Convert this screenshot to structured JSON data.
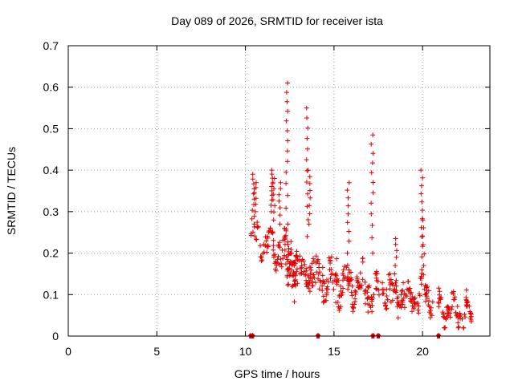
{
  "chart_data": {
    "type": "scatter",
    "title": "Day 089 of 2026, SRMTID for receiver ista",
    "xlabel": "GPS time / hours",
    "ylabel": "SRMTID / TECUs",
    "xlim": [
      0,
      23.8
    ],
    "ylim": [
      0,
      0.7
    ],
    "xticks": [
      0,
      5,
      10,
      15,
      20
    ],
    "yticks": [
      0,
      0.1,
      0.2,
      0.3,
      0.4,
      0.5,
      0.6,
      0.7
    ],
    "xtick_labels": [
      "0",
      "5",
      "10",
      "15",
      "20"
    ],
    "ytick_labels": [
      "0",
      "0.1",
      "0.2",
      "0.3",
      "0.4",
      "0.5",
      "0.6",
      "0.7"
    ],
    "grid": true,
    "marker": "plus",
    "series_color": "#e00000",
    "segments": [
      {
        "x0": 10.3,
        "x1": 12.9,
        "center": 0.235,
        "spread": 0.03,
        "trend": -0.04,
        "density": 40
      },
      {
        "x0": 12.2,
        "x1": 13.8,
        "center": 0.165,
        "spread": 0.035,
        "trend": -0.02,
        "density": 45
      },
      {
        "x0": 13.6,
        "x1": 16.2,
        "center": 0.145,
        "spread": 0.045,
        "trend": -0.03,
        "density": 40
      },
      {
        "x0": 15.9,
        "x1": 17.4,
        "center": 0.13,
        "spread": 0.035,
        "trend": -0.02,
        "density": 40
      },
      {
        "x0": 17.4,
        "x1": 20.6,
        "center": 0.11,
        "spread": 0.03,
        "trend": -0.02,
        "density": 40
      },
      {
        "x0": 20.9,
        "x1": 22.8,
        "center": 0.075,
        "spread": 0.022,
        "trend": -0.03,
        "density": 42
      }
    ],
    "spikes": [
      {
        "x": 10.45,
        "y0": 0.27,
        "y1": 0.39,
        "n": 10
      },
      {
        "x": 10.55,
        "y0": 0.3,
        "y1": 0.37,
        "n": 6
      },
      {
        "x": 11.5,
        "y0": 0.3,
        "y1": 0.4,
        "n": 10
      },
      {
        "x": 11.6,
        "y0": 0.28,
        "y1": 0.38,
        "n": 8
      },
      {
        "x": 11.95,
        "y0": 0.27,
        "y1": 0.37,
        "n": 7
      },
      {
        "x": 12.35,
        "y0": 0.27,
        "y1": 0.61,
        "n": 14
      },
      {
        "x": 13.5,
        "y0": 0.24,
        "y1": 0.55,
        "n": 12
      },
      {
        "x": 13.6,
        "y0": 0.27,
        "y1": 0.4,
        "n": 8
      },
      {
        "x": 15.8,
        "y0": 0.2,
        "y1": 0.37,
        "n": 9
      },
      {
        "x": 17.15,
        "y0": 0.2,
        "y1": 0.485,
        "n": 12
      },
      {
        "x": 18.5,
        "y0": 0.17,
        "y1": 0.235,
        "n": 5
      },
      {
        "x": 19.95,
        "y0": 0.16,
        "y1": 0.4,
        "n": 12
      },
      {
        "x": 20.05,
        "y0": 0.17,
        "y1": 0.28,
        "n": 6
      }
    ],
    "dropout_marks": [
      10.3,
      10.4,
      14.1,
      17.2,
      17.5,
      20.9
    ]
  }
}
